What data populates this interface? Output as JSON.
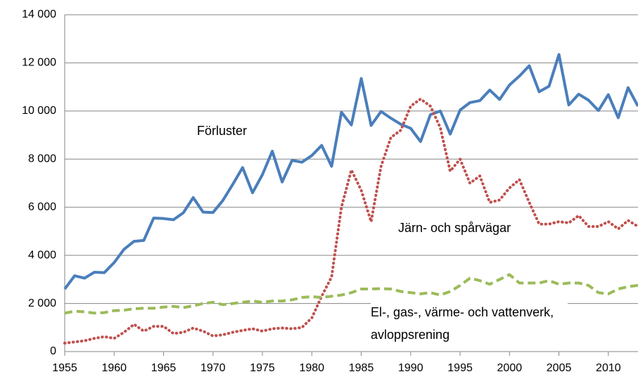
{
  "chart_data": {
    "type": "line",
    "x": [
      1955,
      1956,
      1957,
      1958,
      1959,
      1960,
      1961,
      1962,
      1963,
      1964,
      1965,
      1966,
      1967,
      1968,
      1969,
      1970,
      1971,
      1972,
      1973,
      1974,
      1975,
      1976,
      1977,
      1978,
      1979,
      1980,
      1981,
      1982,
      1983,
      1984,
      1985,
      1986,
      1987,
      1988,
      1989,
      1990,
      1991,
      1992,
      1993,
      1994,
      1995,
      1996,
      1997,
      1998,
      1999,
      2000,
      2001,
      2002,
      2003,
      2004,
      2005,
      2006,
      2007,
      2008,
      2009,
      2010,
      2011,
      2012,
      2013
    ],
    "series": [
      {
        "name": "Förluster",
        "color": "#4a7ebb",
        "style": "solid",
        "values": [
          2600,
          3150,
          3050,
          3300,
          3280,
          3700,
          4250,
          4580,
          4620,
          5550,
          5530,
          5480,
          5770,
          6400,
          5800,
          5780,
          6280,
          6950,
          7650,
          6600,
          7350,
          8330,
          7050,
          7950,
          7870,
          8150,
          8570,
          7700,
          9950,
          9420,
          11350,
          9400,
          9980,
          9700,
          9450,
          9280,
          8730,
          9850,
          10000,
          9040,
          10040,
          10350,
          10430,
          10870,
          10480,
          11080,
          11450,
          11880,
          10800,
          11030,
          12350,
          10250,
          10700,
          10450,
          10020,
          10680,
          9720,
          10970,
          10200
        ]
      },
      {
        "name": "Järn- och spårvägar",
        "color": "#c0504d",
        "style": "dotted",
        "values": [
          350,
          400,
          450,
          550,
          620,
          550,
          800,
          1130,
          850,
          1050,
          1050,
          750,
          800,
          980,
          850,
          650,
          700,
          800,
          880,
          950,
          850,
          950,
          980,
          950,
          1000,
          1400,
          2300,
          3100,
          6000,
          7550,
          6700,
          5400,
          7700,
          8900,
          9200,
          10200,
          10500,
          10200,
          9300,
          7500,
          8000,
          7000,
          7300,
          6200,
          6300,
          6800,
          7150,
          6200,
          5300,
          5300,
          5400,
          5350,
          5650,
          5200,
          5200,
          5400,
          5100,
          5450,
          5200
        ]
      },
      {
        "name": "El-, gas-, värme- och vattenverk, avloppsrening",
        "color": "#9bbb59",
        "style": "dashed",
        "values": [
          1600,
          1680,
          1650,
          1600,
          1620,
          1700,
          1720,
          1780,
          1800,
          1800,
          1850,
          1880,
          1830,
          1900,
          2000,
          2050,
          1950,
          2000,
          2050,
          2100,
          2050,
          2100,
          2100,
          2150,
          2250,
          2280,
          2250,
          2300,
          2350,
          2450,
          2600,
          2600,
          2620,
          2600,
          2500,
          2450,
          2400,
          2450,
          2350,
          2500,
          2750,
          3050,
          2950,
          2800,
          3000,
          3200,
          2850,
          2850,
          2850,
          2950,
          2800,
          2850,
          2850,
          2750,
          2450,
          2400,
          2600,
          2700,
          2750
        ]
      }
    ],
    "xlim": [
      1955,
      2013
    ],
    "xticks": [
      1955,
      1960,
      1965,
      1970,
      1975,
      1980,
      1985,
      1990,
      1995,
      2000,
      2005,
      2010
    ],
    "ylim": [
      0,
      14000
    ],
    "yticks": [
      0,
      {
        "value": 2000,
        "label": "2 000"
      },
      {
        "value": 4000,
        "label": "4 000"
      },
      {
        "value": 6000,
        "label": "6 000"
      },
      {
        "value": 8000,
        "label": "8 000"
      },
      {
        "value": 10000,
        "label": "10 000"
      },
      {
        "value": 12000,
        "label": "12 000"
      },
      {
        "value": 14000,
        "label": "14 000"
      }
    ],
    "grid": true
  }
}
